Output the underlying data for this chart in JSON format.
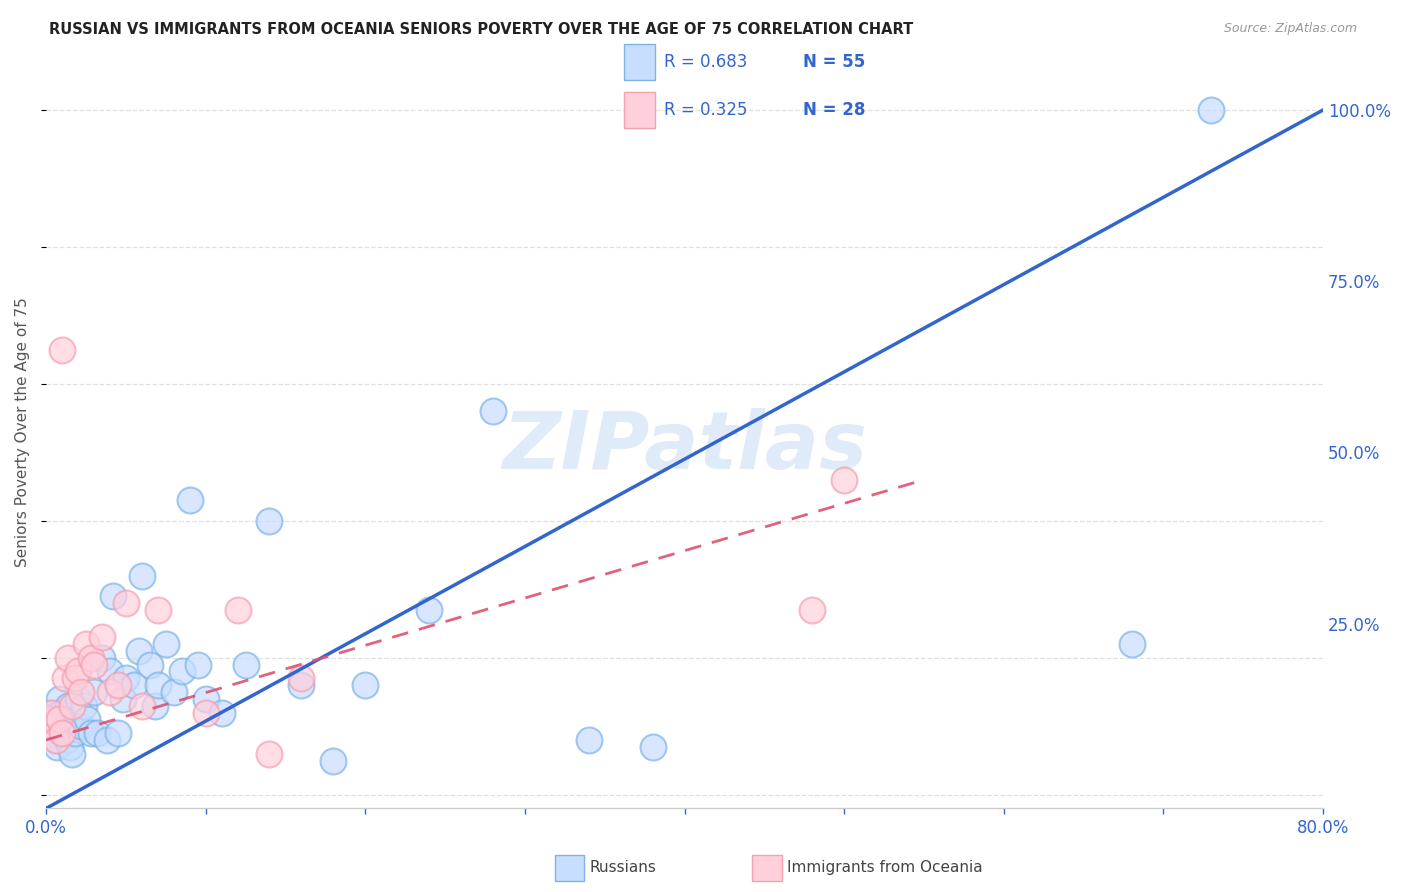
{
  "title": "RUSSIAN VS IMMIGRANTS FROM OCEANIA SENIORS POVERTY OVER THE AGE OF 75 CORRELATION CHART",
  "source": "Source: ZipAtlas.com",
  "ylabel": "Seniors Poverty Over the Age of 75",
  "xlim": [
    0.0,
    0.8
  ],
  "ylim": [
    -0.02,
    1.08
  ],
  "xticks": [
    0.0,
    0.1,
    0.2,
    0.3,
    0.4,
    0.5,
    0.6,
    0.7,
    0.8
  ],
  "xticklabels": [
    "0.0%",
    "",
    "",
    "",
    "",
    "",
    "",
    "",
    "80.0%"
  ],
  "ytick_positions": [
    0.0,
    0.25,
    0.5,
    0.75,
    1.0
  ],
  "ytick_labels": [
    "",
    "25.0%",
    "50.0%",
    "75.0%",
    "100.0%"
  ],
  "russian_color": "#7EB3E8",
  "oceania_color": "#F4A0B0",
  "russian_line_color": "#3366CC",
  "oceania_line_color": "#E05070",
  "russian_line_x": [
    0.0,
    0.8
  ],
  "russian_line_y": [
    -0.02,
    1.0
  ],
  "oceania_line_x": [
    0.0,
    0.55
  ],
  "oceania_line_y": [
    0.08,
    0.46
  ],
  "watermark": "ZIPatlas",
  "background_color": "#ffffff",
  "grid_color": "#dddddd",
  "russians_x": [
    0.001,
    0.002,
    0.003,
    0.004,
    0.005,
    0.006,
    0.007,
    0.008,
    0.009,
    0.01,
    0.011,
    0.012,
    0.013,
    0.014,
    0.015,
    0.016,
    0.018,
    0.02,
    0.022,
    0.024,
    0.026,
    0.028,
    0.03,
    0.032,
    0.035,
    0.038,
    0.04,
    0.042,
    0.045,
    0.048,
    0.05,
    0.055,
    0.058,
    0.06,
    0.065,
    0.068,
    0.07,
    0.075,
    0.08,
    0.085,
    0.09,
    0.095,
    0.1,
    0.11,
    0.125,
    0.14,
    0.16,
    0.18,
    0.2,
    0.24,
    0.28,
    0.34,
    0.38,
    0.68,
    0.73
  ],
  "russians_y": [
    0.12,
    0.11,
    0.1,
    0.09,
    0.11,
    0.08,
    0.07,
    0.14,
    0.12,
    0.09,
    0.1,
    0.11,
    0.08,
    0.13,
    0.07,
    0.06,
    0.09,
    0.14,
    0.1,
    0.13,
    0.11,
    0.09,
    0.15,
    0.09,
    0.2,
    0.08,
    0.18,
    0.29,
    0.09,
    0.14,
    0.17,
    0.16,
    0.21,
    0.32,
    0.19,
    0.13,
    0.16,
    0.22,
    0.15,
    0.18,
    0.43,
    0.19,
    0.14,
    0.12,
    0.19,
    0.4,
    0.16,
    0.05,
    0.16,
    0.27,
    0.56,
    0.08,
    0.07,
    0.22,
    1.0
  ],
  "oceania_x": [
    0.001,
    0.002,
    0.004,
    0.006,
    0.008,
    0.01,
    0.012,
    0.014,
    0.016,
    0.018,
    0.02,
    0.022,
    0.025,
    0.028,
    0.03,
    0.035,
    0.04,
    0.045,
    0.05,
    0.06,
    0.07,
    0.1,
    0.12,
    0.14,
    0.16,
    0.48,
    0.5,
    0.01
  ],
  "oceania_y": [
    0.1,
    0.11,
    0.12,
    0.08,
    0.11,
    0.09,
    0.17,
    0.2,
    0.13,
    0.17,
    0.18,
    0.15,
    0.22,
    0.2,
    0.19,
    0.23,
    0.15,
    0.16,
    0.28,
    0.13,
    0.27,
    0.12,
    0.27,
    0.06,
    0.17,
    0.27,
    0.46,
    0.65
  ]
}
